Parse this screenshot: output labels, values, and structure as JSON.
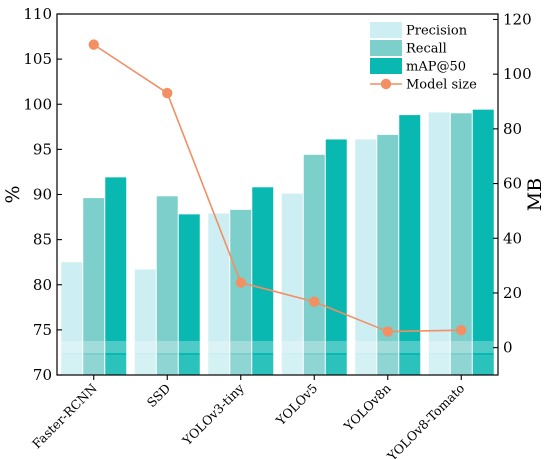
{
  "chart_data": {
    "type": "bar",
    "categories": [
      "Faster-RCNN",
      "SSD",
      "YOLOv3-tiny",
      "YOLOv5",
      "YOLOv8n",
      "YOLOv8-Tomato"
    ],
    "series": [
      {
        "name": "Precision",
        "axis": "left",
        "kind": "bar",
        "color": "#cdeff3",
        "values": [
          82.5,
          81.7,
          87.9,
          90.1,
          96.1,
          99.1
        ]
      },
      {
        "name": "Recall",
        "axis": "left",
        "kind": "bar",
        "color": "#7dcfcc",
        "values": [
          89.6,
          89.8,
          88.3,
          94.4,
          96.6,
          99.0
        ]
      },
      {
        "name": "mAP@50",
        "axis": "left",
        "kind": "bar",
        "color": "#0ab8b2",
        "values": [
          91.9,
          87.8,
          90.8,
          96.1,
          98.8,
          99.4
        ]
      },
      {
        "name": "Model size",
        "axis": "right",
        "kind": "line",
        "color": "#f28f63",
        "values": [
          110.8,
          93.1,
          23.8,
          16.8,
          5.9,
          6.4
        ]
      }
    ],
    "y_left": {
      "label": "%",
      "min": 70,
      "max": 110,
      "ticks": [
        70,
        75,
        80,
        85,
        90,
        95,
        100,
        105,
        110
      ]
    },
    "y_right": {
      "label": "MB",
      "min": -10,
      "max": 122,
      "ticks": [
        0,
        20,
        40,
        60,
        80,
        100,
        120
      ]
    },
    "legend_position": "top-right",
    "grid": false
  }
}
